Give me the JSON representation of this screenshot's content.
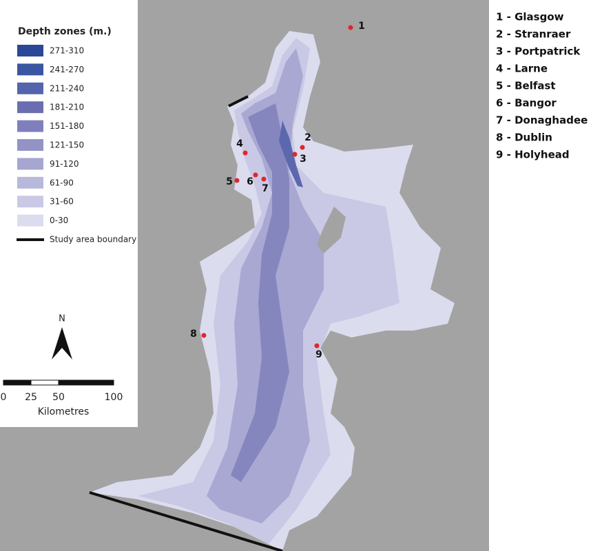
{
  "legend": {
    "title": "Depth zones (m.)",
    "items": [
      {
        "label": "271-310",
        "color": "#2c4797"
      },
      {
        "label": "241-270",
        "color": "#3a55a2"
      },
      {
        "label": "211-240",
        "color": "#5465ad"
      },
      {
        "label": "181-210",
        "color": "#6a6db0"
      },
      {
        "label": "151-180",
        "color": "#7f80bb"
      },
      {
        "label": "121-150",
        "color": "#9393c6"
      },
      {
        "label": "91-120",
        "color": "#a6a6d1"
      },
      {
        "label": "61-90",
        "color": "#b8b8dc"
      },
      {
        "label": "31-60",
        "color": "#c9c9e6"
      },
      {
        "label": "0-30",
        "color": "#dcdcef"
      }
    ],
    "boundary": "Study area boundary"
  },
  "north": "N",
  "scale": {
    "ticks": [
      0,
      25,
      50,
      100
    ],
    "unit": "Kilometres"
  },
  "places": [
    {
      "marker": "1",
      "label": "1 - Glasgow"
    },
    {
      "marker": "2",
      "label": "2 - Stranraer"
    },
    {
      "marker": "3",
      "label": "3 - Portpatrick"
    },
    {
      "marker": "4",
      "label": "4 - Larne"
    },
    {
      "marker": "5",
      "label": "5 - Belfast"
    },
    {
      "marker": "6",
      "label": "6 - Bangor"
    },
    {
      "marker": "7",
      "label": "7 - Donaghadee"
    },
    {
      "marker": "8",
      "label": "8 - Dublin"
    },
    {
      "marker": "9",
      "label": "9 - Holyhead"
    }
  ]
}
